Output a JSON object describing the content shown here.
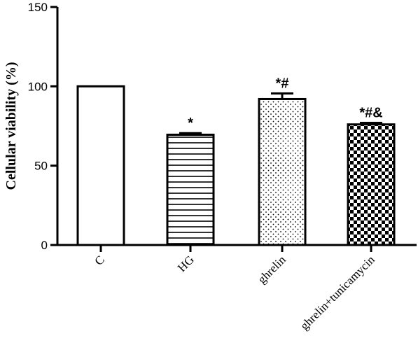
{
  "chart_data": {
    "type": "bar",
    "title": "",
    "xlabel": "",
    "ylabel": "Cellular viability (%)",
    "ylim": [
      0,
      150
    ],
    "yticks": [
      0,
      50,
      100,
      150
    ],
    "categories": [
      "C",
      "HG",
      "ghrelin",
      "ghrelin+tunicamycin"
    ],
    "values": [
      100,
      69.5,
      92,
      76
    ],
    "errors": [
      0,
      1,
      3.5,
      1
    ],
    "annotations": [
      "",
      "*",
      "*#",
      "*#&"
    ],
    "patterns": [
      "solid-white",
      "horizontal-lines",
      "dots",
      "checkerboard"
    ],
    "grid": false
  }
}
